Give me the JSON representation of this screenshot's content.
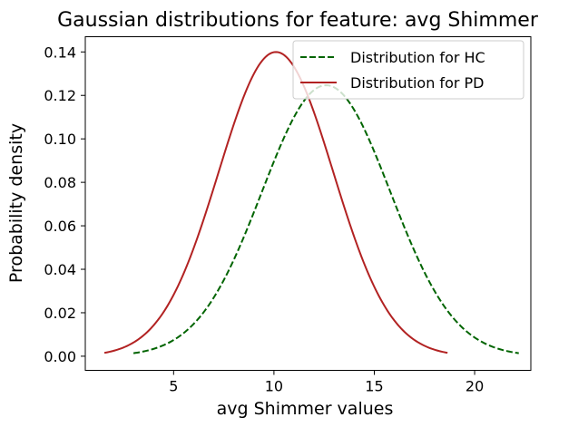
{
  "chart_data": {
    "type": "line",
    "title": "Gaussian distributions for feature: avg Shimmer",
    "xlabel": "avg Shimmer values",
    "ylabel": "Probability density",
    "xlim": [
      0.6,
      22.8
    ],
    "ylim": [
      -0.0065,
      0.147
    ],
    "xticks": [
      5,
      10,
      15,
      20
    ],
    "yticks": [
      0.0,
      0.02,
      0.04,
      0.06,
      0.08,
      0.1,
      0.12,
      0.14
    ],
    "ytick_labels": [
      "0.00",
      "0.02",
      "0.04",
      "0.06",
      "0.08",
      "0.10",
      "0.12",
      "0.14"
    ],
    "legend_position": "upper-right",
    "series": [
      {
        "name": "Distribution for HC",
        "distribution": "normal",
        "mean": 12.6,
        "std": 3.2,
        "x_range": [
          3.0,
          22.2
        ],
        "color": "#006400",
        "linestyle": "dashed"
      },
      {
        "name": "Distribution for PD",
        "distribution": "normal",
        "mean": 10.1,
        "std": 2.85,
        "x_range": [
          1.55,
          18.65
        ],
        "color": "#b22222",
        "linestyle": "solid"
      }
    ]
  }
}
